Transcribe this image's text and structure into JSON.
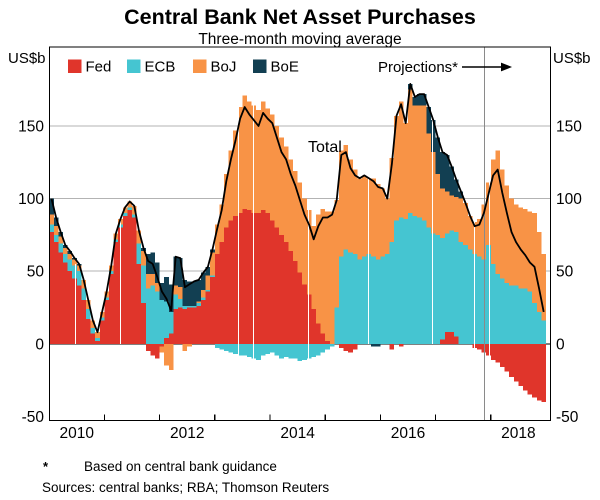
{
  "title": "Central Bank Net Asset Purchases",
  "subtitle": "Three-month moving average",
  "y_axis": {
    "left_label": "US$b",
    "right_label": "US$b"
  },
  "annotations": {
    "total": "Total",
    "projections": "Projections*"
  },
  "footnote": {
    "marker": "*",
    "text": "Based on central bank guidance"
  },
  "sources": "Sources: central banks; RBA; Thomson Reuters",
  "colors": {
    "fed": "#e0352b",
    "ecb": "#45c5d1",
    "boj": "#f89346",
    "boe": "#123f52",
    "total_line": "#000000",
    "projection_line": "#8a8a8a",
    "gridline": "#b3b3b3"
  },
  "chart_data": {
    "type": "bar",
    "subtype": "stacked_bars_with_net_total_line",
    "x_unit": "month",
    "x_start": "2010-01",
    "x_end": "2018-12",
    "year_tick_labels": [
      2010,
      2012,
      2014,
      2016,
      2018
    ],
    "y_ticks": [
      -50,
      0,
      50,
      100,
      150
    ],
    "ylim": [
      -52,
      204
    ],
    "grid": "horizontal at 50,100,150; black zero line",
    "legend_position": "top-left inside plot",
    "projection_start": "2017-11",
    "total_line_note": "black line = net sum of the four series (3-month moving average)",
    "series": [
      {
        "name": "Fed",
        "color": "#e0352b",
        "values": [
          77,
          70,
          63,
          56,
          50,
          45,
          40,
          30,
          17,
          7,
          2,
          16,
          30,
          48,
          70,
          80,
          88,
          92,
          87,
          55,
          28,
          -5,
          -8,
          -10,
          -2,
          4,
          7,
          24,
          25,
          24,
          25,
          25,
          26,
          30,
          36,
          46,
          62,
          70,
          80,
          85,
          88,
          90,
          93,
          92,
          90,
          90,
          92,
          90,
          85,
          80,
          75,
          70,
          64,
          57,
          49,
          41,
          34,
          24,
          14,
          7,
          2,
          0,
          0,
          -3,
          -5,
          -6,
          -4,
          0,
          0,
          0,
          0,
          0,
          0,
          0,
          -4,
          0,
          -2,
          0,
          0,
          0,
          0,
          0,
          0,
          0,
          0,
          3,
          8,
          8,
          5,
          0,
          0,
          0,
          -3,
          -4,
          -6,
          -8,
          -11,
          -13,
          -16,
          -19,
          -23,
          -26,
          -29,
          -32,
          -35,
          -37,
          -39,
          -40
        ]
      },
      {
        "name": "ECB",
        "color": "#45c5d1",
        "values": [
          5,
          5,
          6,
          6,
          8,
          9,
          10,
          8,
          7,
          4,
          2,
          2,
          2,
          2,
          2,
          2,
          2,
          2,
          2,
          14,
          26,
          38,
          40,
          36,
          30,
          25,
          15,
          10,
          6,
          2,
          1,
          1,
          2,
          2,
          1,
          1,
          -3,
          -4,
          -5,
          -6,
          -7,
          -8,
          -8,
          -9,
          -10,
          -11,
          -8,
          -7,
          -6,
          -8,
          -10,
          -9,
          -10,
          -10,
          -12,
          -11,
          -10,
          -9,
          -8,
          -6,
          -4,
          -2,
          25,
          60,
          65,
          63,
          62,
          58,
          60,
          62,
          60,
          58,
          60,
          62,
          70,
          85,
          87,
          86,
          90,
          88,
          87,
          85,
          80,
          76,
          75,
          70,
          68,
          70,
          72,
          70,
          68,
          65,
          62,
          60,
          58,
          68,
          55,
          48,
          45,
          42,
          40,
          40,
          38,
          38,
          36,
          28,
          22,
          16
        ]
      },
      {
        "name": "BoJ",
        "color": "#f89346",
        "values": [
          7,
          6,
          5,
          4,
          4,
          4,
          4,
          6,
          6,
          5,
          4,
          4,
          4,
          4,
          4,
          4,
          4,
          4,
          6,
          9,
          10,
          10,
          8,
          6,
          -4,
          -15,
          -18,
          6,
          8,
          -5,
          -2,
          0,
          1,
          5,
          10,
          16,
          20,
          26,
          37,
          48,
          59,
          73,
          78,
          75,
          74,
          71,
          75,
          72,
          73,
          70,
          67,
          66,
          63,
          62,
          62,
          59,
          58,
          57,
          75,
          86,
          89,
          91,
          74,
          73,
          72,
          64,
          58,
          56,
          56,
          52,
          54,
          52,
          47,
          38,
          58,
          72,
          80,
          66,
          85,
          76,
          77,
          79,
          65,
          56,
          42,
          34,
          29,
          24,
          24,
          30,
          29,
          23,
          22,
          26,
          38,
          43,
          72,
          85,
          75,
          67,
          60,
          56,
          56,
          55,
          55,
          62,
          55,
          46
        ]
      },
      {
        "name": "BoE",
        "color": "#123f52",
        "values": [
          11,
          6,
          3,
          2,
          2,
          1,
          1,
          0,
          0,
          0,
          0,
          0,
          0,
          0,
          0,
          0,
          0,
          0,
          0,
          0,
          2,
          14,
          15,
          14,
          12,
          17,
          19,
          20,
          20,
          18,
          17,
          17,
          15,
          12,
          6,
          2,
          0,
          0,
          0,
          0,
          0,
          0,
          0,
          0,
          0,
          0,
          0,
          0,
          0,
          0,
          0,
          0,
          0,
          0,
          0,
          0,
          0,
          0,
          0,
          0,
          0,
          0,
          0,
          0,
          0,
          0,
          0,
          0,
          0,
          0,
          -2,
          -2,
          0,
          0,
          0,
          0,
          0,
          0,
          4,
          6,
          8,
          8,
          18,
          22,
          25,
          25,
          25,
          20,
          12,
          5,
          0,
          0,
          0,
          0,
          0,
          0,
          0,
          0,
          0,
          0,
          0,
          0,
          0,
          0,
          0,
          0,
          0,
          0
        ]
      }
    ]
  }
}
